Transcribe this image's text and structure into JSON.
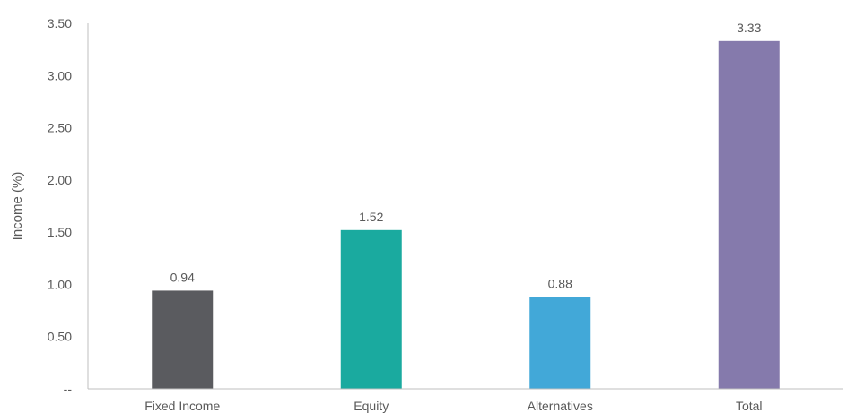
{
  "chart_data": {
    "type": "bar",
    "title": "",
    "xlabel": "",
    "ylabel": "Income (%)",
    "categories": [
      "Fixed Income",
      "Equity",
      "Alternatives",
      "Total"
    ],
    "values": [
      0.94,
      1.52,
      0.88,
      3.33
    ],
    "value_labels": [
      "0.94",
      "1.52",
      "0.88",
      "3.33"
    ],
    "colors": [
      "#5a5b5f",
      "#1aaa9f",
      "#42a8d8",
      "#857aac"
    ],
    "ylim": [
      0,
      3.5
    ],
    "yticks": [
      0,
      0.5,
      1.0,
      1.5,
      2.0,
      2.5,
      3.0,
      3.5
    ],
    "ytick_labels": [
      "--",
      "0.50",
      "1.00",
      "1.50",
      "2.00",
      "2.50",
      "3.00",
      "3.50"
    ],
    "grid": false,
    "legend": "none"
  }
}
